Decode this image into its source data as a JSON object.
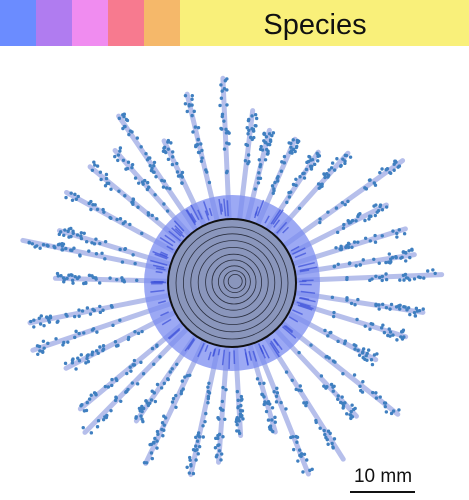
{
  "header": {
    "title": "Species"
  },
  "scale_bar": {
    "label": "10 mm"
  }
}
